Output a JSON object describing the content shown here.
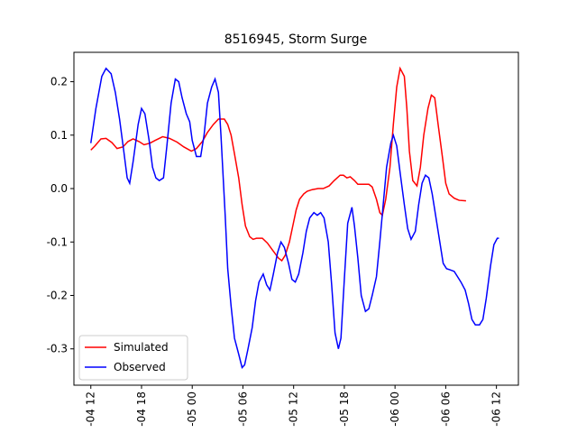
{
  "chart_data": {
    "type": "line",
    "title": "8516945, Storm Surge",
    "xlim": [
      -2.0,
      50.6
    ],
    "ylim": [
      -0.368,
      0.255
    ],
    "xticks": [
      {
        "value": 0,
        "label": "-04 12"
      },
      {
        "value": 6,
        "label": "-04 18"
      },
      {
        "value": 12,
        "label": "-05 00"
      },
      {
        "value": 18,
        "label": "-05 06"
      },
      {
        "value": 24,
        "label": "-05 12"
      },
      {
        "value": 30,
        "label": "-05 18"
      },
      {
        "value": 36,
        "label": "-06 00"
      },
      {
        "value": 42,
        "label": "-06 06"
      },
      {
        "value": 48,
        "label": "-06 12"
      }
    ],
    "yticks": [
      -0.3,
      -0.2,
      -0.1,
      {
        "value": 0,
        "label": "0.0"
      },
      0.1,
      0.2
    ],
    "legend": "lower left",
    "series": [
      {
        "name": "Simulated",
        "color": "#ff0000",
        "x": [
          0,
          0.5,
          1.2,
          1.8,
          2.5,
          3.1,
          3.8,
          4.4,
          5.0,
          5.7,
          6.3,
          7.0,
          7.6,
          8.5,
          9.3,
          10.2,
          11.0,
          11.9,
          12.5,
          13.2,
          13.8,
          14.5,
          15.1,
          15.8,
          16.2,
          16.6,
          17.0,
          17.5,
          17.9,
          18.3,
          18.8,
          19.2,
          19.6,
          20.3,
          20.9,
          21.5,
          22.2,
          22.6,
          23.0,
          23.5,
          23.9,
          24.3,
          24.7,
          25.2,
          25.6,
          26.2,
          26.9,
          27.5,
          28.2,
          28.8,
          29.5,
          29.9,
          30.3,
          30.7,
          31.2,
          31.6,
          32.2,
          32.9,
          33.3,
          33.8,
          34.2,
          34.5,
          34.9,
          35.4,
          35.8,
          36.2,
          36.6,
          37.1,
          37.4,
          37.7,
          38.1,
          38.6,
          39.0,
          39.4,
          39.9,
          40.3,
          40.7,
          41.1,
          41.6,
          42.0,
          42.4,
          43.0,
          43.6,
          44.4
        ],
        "values": [
          0.072,
          0.08,
          0.093,
          0.094,
          0.086,
          0.075,
          0.078,
          0.088,
          0.093,
          0.088,
          0.082,
          0.085,
          0.09,
          0.097,
          0.094,
          0.087,
          0.078,
          0.07,
          0.075,
          0.088,
          0.105,
          0.12,
          0.13,
          0.13,
          0.12,
          0.1,
          0.065,
          0.02,
          -0.03,
          -0.07,
          -0.09,
          -0.095,
          -0.093,
          -0.093,
          -0.102,
          -0.115,
          -0.13,
          -0.135,
          -0.125,
          -0.1,
          -0.07,
          -0.04,
          -0.02,
          -0.01,
          -0.005,
          -0.002,
          0.0,
          0.0,
          0.005,
          0.015,
          0.025,
          0.025,
          0.02,
          0.022,
          0.015,
          0.008,
          0.008,
          0.008,
          0.003,
          -0.02,
          -0.045,
          -0.05,
          -0.02,
          0.04,
          0.12,
          0.19,
          0.225,
          0.21,
          0.15,
          0.07,
          0.015,
          0.005,
          0.04,
          0.1,
          0.15,
          0.175,
          0.17,
          0.12,
          0.06,
          0.01,
          -0.01,
          -0.018,
          -0.022,
          -0.023
        ]
      },
      {
        "name": "Observed",
        "color": "#0000ff",
        "x": [
          0,
          0.6,
          1.3,
          1.8,
          2.4,
          2.9,
          3.4,
          3.9,
          4.3,
          4.6,
          5.0,
          5.6,
          6.0,
          6.4,
          6.9,
          7.3,
          7.7,
          8.1,
          8.6,
          9.0,
          9.5,
          10.0,
          10.4,
          10.8,
          11.3,
          11.7,
          12.0,
          12.5,
          13.0,
          13.4,
          13.8,
          14.3,
          14.7,
          15.1,
          15.4,
          15.9,
          16.2,
          16.6,
          17.0,
          17.5,
          17.9,
          18.2,
          18.6,
          19.1,
          19.5,
          19.9,
          20.4,
          20.8,
          21.2,
          21.6,
          22.1,
          22.5,
          22.9,
          23.4,
          23.8,
          24.2,
          24.6,
          25.1,
          25.5,
          25.9,
          26.4,
          26.8,
          27.2,
          27.6,
          28.1,
          28.5,
          28.9,
          29.3,
          29.6,
          30.0,
          30.4,
          30.9,
          31.2,
          31.6,
          32.0,
          32.5,
          32.9,
          33.3,
          33.8,
          34.2,
          34.6,
          35.0,
          35.5,
          35.8,
          36.2,
          36.6,
          37.1,
          37.5,
          37.9,
          38.4,
          38.8,
          39.2,
          39.6,
          40.0,
          40.4,
          40.8,
          41.3,
          41.7,
          42.1,
          42.5,
          43.0,
          43.4,
          43.8,
          44.3,
          44.7,
          45.1,
          45.5,
          46.0,
          46.4,
          46.8,
          47.3,
          47.7,
          48.1,
          48.3
        ],
        "values": [
          0.085,
          0.15,
          0.21,
          0.225,
          0.215,
          0.18,
          0.13,
          0.07,
          0.02,
          0.01,
          0.05,
          0.12,
          0.15,
          0.14,
          0.09,
          0.04,
          0.02,
          0.015,
          0.02,
          0.08,
          0.16,
          0.205,
          0.2,
          0.17,
          0.14,
          0.125,
          0.09,
          0.06,
          0.06,
          0.1,
          0.16,
          0.19,
          0.205,
          0.18,
          0.1,
          -0.05,
          -0.15,
          -0.22,
          -0.28,
          -0.31,
          -0.335,
          -0.33,
          -0.3,
          -0.26,
          -0.21,
          -0.175,
          -0.16,
          -0.18,
          -0.19,
          -0.16,
          -0.12,
          -0.1,
          -0.11,
          -0.14,
          -0.17,
          -0.175,
          -0.16,
          -0.12,
          -0.08,
          -0.055,
          -0.045,
          -0.05,
          -0.045,
          -0.055,
          -0.1,
          -0.18,
          -0.27,
          -0.3,
          -0.28,
          -0.17,
          -0.065,
          -0.035,
          -0.07,
          -0.13,
          -0.2,
          -0.23,
          -0.225,
          -0.2,
          -0.165,
          -0.1,
          -0.03,
          0.04,
          0.085,
          0.1,
          0.08,
          0.03,
          -0.03,
          -0.075,
          -0.095,
          -0.08,
          -0.03,
          0.01,
          0.025,
          0.02,
          -0.01,
          -0.05,
          -0.1,
          -0.14,
          -0.15,
          -0.152,
          -0.155,
          -0.165,
          -0.175,
          -0.19,
          -0.215,
          -0.245,
          -0.255,
          -0.255,
          -0.245,
          -0.205,
          -0.145,
          -0.105,
          -0.093,
          -0.093
        ]
      }
    ]
  }
}
